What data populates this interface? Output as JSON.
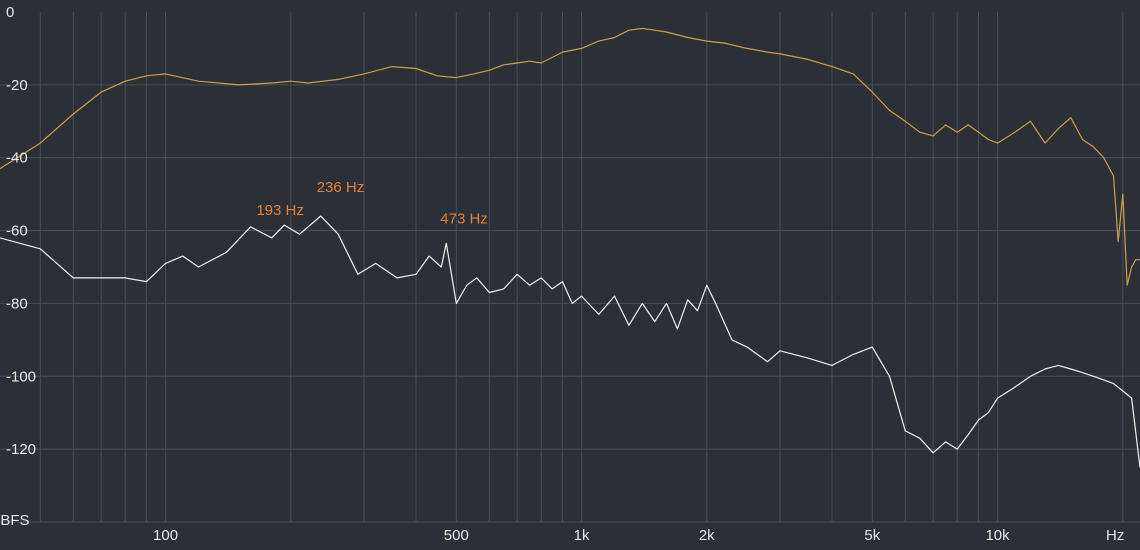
{
  "colors": {
    "background": "#2c2f36",
    "grid": "#4a4e57",
    "text": "#e8e8e8",
    "peak_label": "#e0823a"
  },
  "chart_data": {
    "type": "line",
    "title": "",
    "xlabel": "Hz",
    "ylabel": "dBFS",
    "x_scale": "log",
    "xlim": [
      40,
      22000
    ],
    "ylim": [
      -140,
      0
    ],
    "grid": true,
    "x_gridlines": [
      50,
      60,
      70,
      80,
      90,
      100,
      200,
      300,
      400,
      500,
      600,
      700,
      800,
      900,
      1000,
      2000,
      3000,
      4000,
      5000,
      6000,
      7000,
      8000,
      9000,
      10000,
      20000
    ],
    "y_ticks": [
      {
        "value": 0,
        "label": "0"
      },
      {
        "value": -20,
        "label": "-20"
      },
      {
        "value": -40,
        "label": "-40"
      },
      {
        "value": -60,
        "label": "-60"
      },
      {
        "value": -80,
        "label": "-80"
      },
      {
        "value": -100,
        "label": "-100"
      },
      {
        "value": -120,
        "label": "-120"
      }
    ],
    "x_ticks": [
      {
        "value": 100,
        "label": "100"
      },
      {
        "value": 500,
        "label": "500"
      },
      {
        "value": 1000,
        "label": "1k"
      },
      {
        "value": 2000,
        "label": "2k"
      },
      {
        "value": 5000,
        "label": "5k"
      },
      {
        "value": 10000,
        "label": "10k"
      }
    ],
    "series": [
      {
        "color": "#c9a14e",
        "x": [
          40,
          50,
          60,
          70,
          80,
          90,
          100,
          120,
          150,
          180,
          200,
          220,
          260,
          300,
          350,
          400,
          450,
          500,
          550,
          600,
          650,
          700,
          750,
          800,
          900,
          1000,
          1100,
          1200,
          1300,
          1400,
          1500,
          1600,
          1800,
          2000,
          2200,
          2500,
          2800,
          3000,
          3500,
          4000,
          4500,
          5000,
          5500,
          6000,
          6500,
          7000,
          7500,
          8000,
          8500,
          9000,
          9500,
          10000,
          11000,
          12000,
          13000,
          14000,
          15000,
          16000,
          17000,
          18000,
          19000,
          19500,
          20000,
          20500,
          21000,
          21500,
          22000
        ],
        "values": [
          -43,
          -36,
          -28,
          -22,
          -19,
          -17.5,
          -17,
          -19,
          -20,
          -19.5,
          -19,
          -19.5,
          -18.5,
          -17,
          -15,
          -15.5,
          -17.5,
          -18,
          -17,
          -16,
          -14.5,
          -14,
          -13.5,
          -14,
          -11,
          -10,
          -8,
          -7,
          -5,
          -4.5,
          -5,
          -5.5,
          -7,
          -8,
          -8.5,
          -10,
          -11,
          -11.5,
          -13,
          -15,
          -17,
          -22,
          -27,
          -30,
          -33,
          -34,
          -31,
          -33,
          -31,
          -33,
          -35,
          -36,
          -33,
          -30,
          -36,
          -32,
          -29,
          -35,
          -37,
          -40,
          -45,
          -63,
          -50,
          -75,
          -70,
          -68,
          -68
        ]
      },
      {
        "color": "#f0f0f0",
        "x": [
          40,
          50,
          60,
          70,
          80,
          90,
          100,
          110,
          120,
          140,
          160,
          180,
          193,
          210,
          236,
          260,
          290,
          320,
          360,
          400,
          430,
          460,
          473,
          500,
          530,
          560,
          600,
          650,
          700,
          750,
          800,
          850,
          900,
          950,
          1000,
          1100,
          1200,
          1300,
          1400,
          1500,
          1600,
          1700,
          1800,
          1900,
          2000,
          2100,
          2300,
          2500,
          2800,
          3000,
          3500,
          4000,
          4500,
          5000,
          5500,
          6000,
          6500,
          7000,
          7500,
          8000,
          8500,
          9000,
          9500,
          10000,
          11000,
          12000,
          13000,
          14000,
          15000,
          16000,
          17000,
          18000,
          19000,
          20000,
          21000,
          22000
        ],
        "values": [
          -62,
          -65,
          -73,
          -73,
          -73,
          -74,
          -69,
          -67,
          -70,
          -66,
          -59,
          -62,
          -58.5,
          -61,
          -56,
          -61,
          -72,
          -69,
          -73,
          -72,
          -67,
          -70,
          -63.5,
          -80,
          -75,
          -73,
          -77,
          -76,
          -72,
          -75,
          -73,
          -76,
          -74,
          -80,
          -78,
          -83,
          -78,
          -86,
          -80,
          -85,
          -80,
          -87,
          -79,
          -82,
          -75,
          -80,
          -90,
          -92,
          -96,
          -93,
          -95,
          -97,
          -94,
          -92,
          -100,
          -115,
          -117,
          -121,
          -118,
          -120,
          -116,
          -112,
          -110,
          -106,
          -103,
          -100,
          -98,
          -97,
          -98,
          -99,
          -100,
          -101,
          -102,
          -104,
          -106,
          -125
        ]
      }
    ],
    "annotations": [
      {
        "text": "193 Hz",
        "x": 193,
        "y": -58.5
      },
      {
        "text": "236 Hz",
        "x": 236,
        "y": -56
      },
      {
        "text": "473 Hz",
        "x": 473,
        "y": -63.5
      }
    ]
  }
}
